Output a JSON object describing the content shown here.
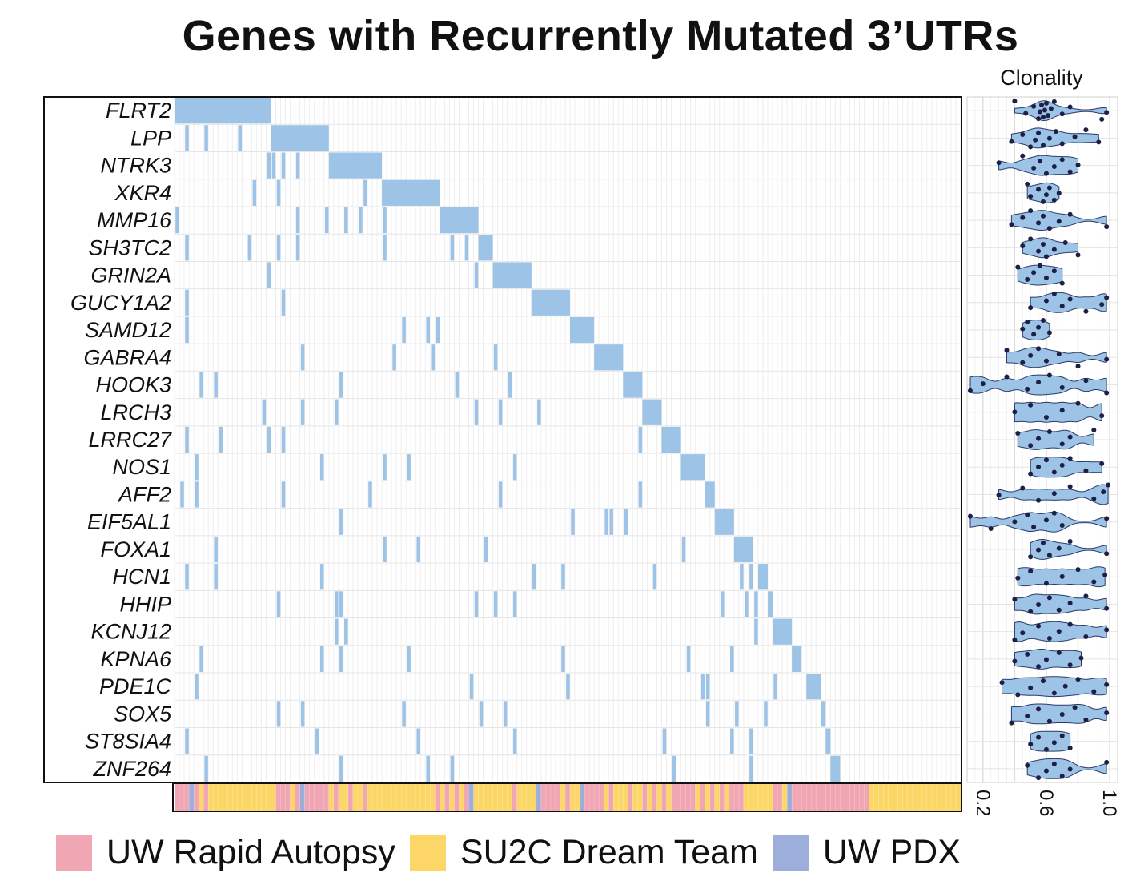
{
  "chart_data": [
    {
      "type": "heatmap",
      "title": "Genes with Recurrently Mutated 3’UTRs",
      "genes": [
        "FLRT2",
        "LPP",
        "NTRK3",
        "XKR4",
        "MMP16",
        "SH3TC2",
        "GRIN2A",
        "GUCY1A2",
        "SAMD12",
        "GABRA4",
        "HOOK3",
        "LRCH3",
        "LRRC27",
        "NOS1",
        "AFF2",
        "EIF5AL1",
        "FOXA1",
        "HCN1",
        "HHIP",
        "KCNJ12",
        "KPNA6",
        "PDE1C",
        "SOX5",
        "ST8SIA4",
        "ZNF264"
      ],
      "mutation_color": "#9dc3e6",
      "mutated_samples": [
        {
          "gene": "FLRT2",
          "block": [
            0,
            19
          ],
          "extra": []
        },
        {
          "gene": "LPP",
          "block": [
            20,
            31
          ],
          "extra": [
            2,
            6,
            13
          ]
        },
        {
          "gene": "NTRK3",
          "block": [
            32,
            42
          ],
          "extra": [
            19,
            20,
            22,
            25
          ]
        },
        {
          "gene": "XKR4",
          "block": [
            43,
            54
          ],
          "extra": [
            16,
            21,
            39
          ]
        },
        {
          "gene": "MMP16",
          "block": [
            55,
            62
          ],
          "extra": [
            0,
            25,
            31,
            35,
            38,
            43
          ]
        },
        {
          "gene": "SH3TC2",
          "block": [
            63,
            65
          ],
          "extra": [
            2,
            15,
            21,
            25,
            43,
            57,
            60
          ]
        },
        {
          "gene": "GRIN2A",
          "block": [
            66,
            73
          ],
          "extra": [
            19,
            62
          ]
        },
        {
          "gene": "GUCY1A2",
          "block": [
            74,
            81
          ],
          "extra": [
            2,
            22
          ]
        },
        {
          "gene": "SAMD12",
          "block": [
            82,
            86
          ],
          "extra": [
            2,
            47,
            52,
            54
          ]
        },
        {
          "gene": "GABRA4",
          "block": [
            87,
            92
          ],
          "extra": [
            26,
            45,
            53,
            66
          ]
        },
        {
          "gene": "HOOK3",
          "block": [
            93,
            96
          ],
          "extra": [
            5,
            8,
            34,
            58,
            69
          ]
        },
        {
          "gene": "LRCH3",
          "block": [
            97,
            100
          ],
          "extra": [
            18,
            26,
            33,
            62,
            67,
            75
          ]
        },
        {
          "gene": "LRRC27",
          "block": [
            101,
            104
          ],
          "extra": [
            2,
            9,
            19,
            22,
            96
          ]
        },
        {
          "gene": "NOS1",
          "block": [
            105,
            109
          ],
          "extra": [
            4,
            30,
            43,
            48,
            70
          ]
        },
        {
          "gene": "AFF2",
          "block": [
            110,
            111
          ],
          "extra": [
            1,
            4,
            22,
            40,
            67,
            96
          ]
        },
        {
          "gene": "EIF5AL1",
          "block": [
            112,
            115
          ],
          "extra": [
            34,
            82,
            89,
            90,
            93
          ]
        },
        {
          "gene": "FOXA1",
          "block": [
            116,
            119
          ],
          "extra": [
            8,
            43,
            50,
            64,
            105
          ]
        },
        {
          "gene": "HCN1",
          "block": [
            121,
            122
          ],
          "extra": [
            2,
            8,
            30,
            74,
            80,
            99,
            117,
            119
          ]
        },
        {
          "gene": "HHIP",
          "block": [
            123,
            123
          ],
          "extra": [
            21,
            33,
            34,
            62,
            66,
            70,
            113,
            118,
            120
          ]
        },
        {
          "gene": "KCNJ12",
          "block": [
            124,
            127
          ],
          "extra": [
            33,
            35,
            120
          ]
        },
        {
          "gene": "KPNA6",
          "block": [
            128,
            129
          ],
          "extra": [
            5,
            30,
            34,
            48,
            80,
            106,
            115
          ]
        },
        {
          "gene": "PDE1C",
          "block": [
            131,
            133
          ],
          "extra": [
            4,
            61,
            81,
            109,
            110,
            124
          ]
        },
        {
          "gene": "SOX5",
          "block": [
            134,
            134
          ],
          "extra": [
            21,
            26,
            47,
            63,
            68,
            110,
            116,
            122
          ]
        },
        {
          "gene": "ST8SIA4",
          "block": [
            135,
            135
          ],
          "extra": [
            2,
            29,
            50,
            70,
            101,
            115,
            119
          ]
        },
        {
          "gene": "ZNF264",
          "block": [
            136,
            137
          ],
          "extra": [
            6,
            34,
            52,
            57,
            103,
            119
          ]
        }
      ],
      "cohort_bar": {
        "categories": [
          "UW Rapid Autopsy",
          "SU2C Dream Team",
          "UW PDX"
        ],
        "colors": [
          "#f1a6b3",
          "#fcd767",
          "#9eaedb"
        ],
        "segments": [
          {
            "group": 0,
            "from": 0,
            "to": 3
          },
          {
            "group": 2,
            "from": 3,
            "to": 4
          },
          {
            "group": 0,
            "from": 4,
            "to": 5
          },
          {
            "group": 1,
            "from": 5,
            "to": 6
          },
          {
            "group": 0,
            "from": 6,
            "to": 7
          },
          {
            "group": 1,
            "from": 7,
            "to": 21
          },
          {
            "group": 0,
            "from": 21,
            "to": 24
          },
          {
            "group": 1,
            "from": 24,
            "to": 25
          },
          {
            "group": 0,
            "from": 25,
            "to": 26
          },
          {
            "group": 2,
            "from": 26,
            "to": 27
          },
          {
            "group": 0,
            "from": 27,
            "to": 32
          },
          {
            "group": 1,
            "from": 32,
            "to": 33
          },
          {
            "group": 0,
            "from": 33,
            "to": 34
          },
          {
            "group": 1,
            "from": 34,
            "to": 36
          },
          {
            "group": 0,
            "from": 36,
            "to": 37
          },
          {
            "group": 1,
            "from": 37,
            "to": 39
          },
          {
            "group": 0,
            "from": 39,
            "to": 40
          },
          {
            "group": 1,
            "from": 40,
            "to": 54
          },
          {
            "group": 0,
            "from": 54,
            "to": 55
          },
          {
            "group": 1,
            "from": 55,
            "to": 56
          },
          {
            "group": 0,
            "from": 56,
            "to": 57
          },
          {
            "group": 1,
            "from": 57,
            "to": 58
          },
          {
            "group": 0,
            "from": 58,
            "to": 59
          },
          {
            "group": 1,
            "from": 59,
            "to": 60
          },
          {
            "group": 0,
            "from": 60,
            "to": 61
          },
          {
            "group": 2,
            "from": 61,
            "to": 62
          },
          {
            "group": 1,
            "from": 62,
            "to": 70
          },
          {
            "group": 0,
            "from": 70,
            "to": 71
          },
          {
            "group": 1,
            "from": 71,
            "to": 75
          },
          {
            "group": 2,
            "from": 75,
            "to": 76
          },
          {
            "group": 0,
            "from": 76,
            "to": 80
          },
          {
            "group": 1,
            "from": 80,
            "to": 81
          },
          {
            "group": 0,
            "from": 81,
            "to": 82
          },
          {
            "group": 1,
            "from": 82,
            "to": 84
          },
          {
            "group": 2,
            "from": 84,
            "to": 85
          },
          {
            "group": 0,
            "from": 85,
            "to": 89
          },
          {
            "group": 1,
            "from": 89,
            "to": 90
          },
          {
            "group": 0,
            "from": 90,
            "to": 91
          },
          {
            "group": 1,
            "from": 91,
            "to": 94
          },
          {
            "group": 0,
            "from": 94,
            "to": 95
          },
          {
            "group": 1,
            "from": 95,
            "to": 97
          },
          {
            "group": 0,
            "from": 97,
            "to": 98
          },
          {
            "group": 1,
            "from": 98,
            "to": 99
          },
          {
            "group": 0,
            "from": 99,
            "to": 100
          },
          {
            "group": 1,
            "from": 100,
            "to": 101
          },
          {
            "group": 0,
            "from": 101,
            "to": 102
          },
          {
            "group": 1,
            "from": 102,
            "to": 103
          },
          {
            "group": 0,
            "from": 103,
            "to": 108
          },
          {
            "group": 1,
            "from": 108,
            "to": 109
          },
          {
            "group": 0,
            "from": 109,
            "to": 110
          },
          {
            "group": 1,
            "from": 110,
            "to": 111
          },
          {
            "group": 0,
            "from": 111,
            "to": 112
          },
          {
            "group": 1,
            "from": 112,
            "to": 113
          },
          {
            "group": 0,
            "from": 113,
            "to": 114
          },
          {
            "group": 1,
            "from": 114,
            "to": 115
          },
          {
            "group": 0,
            "from": 115,
            "to": 118
          },
          {
            "group": 1,
            "from": 118,
            "to": 124
          },
          {
            "group": 0,
            "from": 124,
            "to": 126
          },
          {
            "group": 1,
            "from": 126,
            "to": 127
          },
          {
            "group": 2,
            "from": 127,
            "to": 128
          },
          {
            "group": 0,
            "from": 128,
            "to": 144
          },
          {
            "group": 1,
            "from": 144,
            "to": 163
          }
        ]
      },
      "n_samples": 163
    },
    {
      "type": "scatter",
      "subtype": "violin",
      "title": "Clonality",
      "xlim": [
        0.1,
        1.05
      ],
      "xticks": [
        "0.2",
        "0.6",
        "1.0"
      ],
      "violin_color": "#9dc3e6",
      "genes": [
        "FLRT2",
        "LPP",
        "NTRK3",
        "XKR4",
        "MMP16",
        "SH3TC2",
        "GRIN2A",
        "GUCY1A2",
        "SAMD12",
        "GABRA4",
        "HOOK3",
        "LRCH3",
        "LRRC27",
        "NOS1",
        "AFF2",
        "EIF5AL1",
        "FOXA1",
        "HCN1",
        "HHIP",
        "KCNJ12",
        "KPNA6",
        "PDE1C",
        "SOX5",
        "ST8SIA4",
        "ZNF264"
      ],
      "series": [
        {
          "name": "FLRT2",
          "values": [
            0.4,
            0.47,
            0.52,
            0.55,
            0.56,
            0.57,
            0.58,
            0.59,
            0.6,
            0.61,
            0.63,
            0.65,
            0.7,
            0.75,
            0.95,
            0.98
          ]
        },
        {
          "name": "LPP",
          "values": [
            0.38,
            0.45,
            0.5,
            0.53,
            0.55,
            0.58,
            0.62,
            0.66,
            0.7,
            0.78,
            0.85,
            0.93
          ]
        },
        {
          "name": "NTRK3",
          "values": [
            0.3,
            0.45,
            0.52,
            0.56,
            0.6,
            0.65,
            0.7,
            0.75,
            0.8
          ]
        },
        {
          "name": "XKR4",
          "values": [
            0.48,
            0.5,
            0.55,
            0.58,
            0.6,
            0.62,
            0.65,
            0.68
          ]
        },
        {
          "name": "MMP16",
          "values": [
            0.38,
            0.45,
            0.5,
            0.55,
            0.58,
            0.62,
            0.68,
            0.75,
            0.98
          ]
        },
        {
          "name": "SH3TC2",
          "values": [
            0.45,
            0.5,
            0.55,
            0.58,
            0.6,
            0.65,
            0.72,
            0.8
          ]
        },
        {
          "name": "GRIN2A",
          "values": [
            0.42,
            0.48,
            0.52,
            0.56,
            0.6,
            0.65,
            0.7
          ]
        },
        {
          "name": "GUCY1A2",
          "values": [
            0.5,
            0.6,
            0.65,
            0.7,
            0.75,
            0.85,
            0.95,
            0.98
          ]
        },
        {
          "name": "SAMD12",
          "values": [
            0.45,
            0.48,
            0.52,
            0.55,
            0.58,
            0.62
          ]
        },
        {
          "name": "GABRA4",
          "values": [
            0.35,
            0.45,
            0.5,
            0.55,
            0.6,
            0.68,
            0.8,
            0.98
          ]
        },
        {
          "name": "HOOK3",
          "values": [
            0.12,
            0.2,
            0.35,
            0.48,
            0.55,
            0.62,
            0.7,
            0.85,
            0.98
          ]
        },
        {
          "name": "LRCH3",
          "values": [
            0.4,
            0.5,
            0.6,
            0.7,
            0.8,
            0.95
          ]
        },
        {
          "name": "LRRC27",
          "values": [
            0.42,
            0.5,
            0.55,
            0.62,
            0.7,
            0.75,
            0.9
          ]
        },
        {
          "name": "NOS1",
          "values": [
            0.5,
            0.55,
            0.6,
            0.65,
            0.7,
            0.75,
            0.85,
            0.95
          ]
        },
        {
          "name": "AFF2",
          "values": [
            0.3,
            0.45,
            0.55,
            0.65,
            0.75,
            0.9,
            0.96,
            0.99
          ]
        },
        {
          "name": "EIF5AL1",
          "values": [
            0.12,
            0.25,
            0.4,
            0.48,
            0.52,
            0.6,
            0.65,
            0.7,
            0.98
          ]
        },
        {
          "name": "FOXA1",
          "values": [
            0.5,
            0.55,
            0.58,
            0.62,
            0.68,
            0.75,
            0.98
          ]
        },
        {
          "name": "HCN1",
          "values": [
            0.42,
            0.5,
            0.6,
            0.7,
            0.8,
            0.9,
            0.97
          ]
        },
        {
          "name": "HHIP",
          "values": [
            0.4,
            0.5,
            0.55,
            0.62,
            0.68,
            0.75,
            0.85,
            0.98
          ]
        },
        {
          "name": "KCNJ12",
          "values": [
            0.4,
            0.45,
            0.55,
            0.62,
            0.68,
            0.75,
            0.85,
            0.98
          ]
        },
        {
          "name": "KPNA6",
          "values": [
            0.4,
            0.48,
            0.55,
            0.6,
            0.68,
            0.75,
            0.82
          ]
        },
        {
          "name": "PDE1C",
          "values": [
            0.32,
            0.42,
            0.5,
            0.58,
            0.65,
            0.72,
            0.8,
            0.9,
            0.98
          ]
        },
        {
          "name": "SOX5",
          "values": [
            0.38,
            0.48,
            0.55,
            0.62,
            0.7,
            0.78,
            0.85,
            0.98
          ]
        },
        {
          "name": "ST8SIA4",
          "values": [
            0.5,
            0.55,
            0.6,
            0.65,
            0.7,
            0.75
          ]
        },
        {
          "name": "ZNF264",
          "values": [
            0.48,
            0.55,
            0.6,
            0.65,
            0.7,
            0.75,
            0.98
          ]
        }
      ]
    }
  ],
  "legend": [
    {
      "label": "UW Rapid Autopsy",
      "color": "#f1a6b3"
    },
    {
      "label": "SU2C Dream Team",
      "color": "#fcd767"
    },
    {
      "label": "UW PDX",
      "color": "#9eaedb"
    }
  ]
}
